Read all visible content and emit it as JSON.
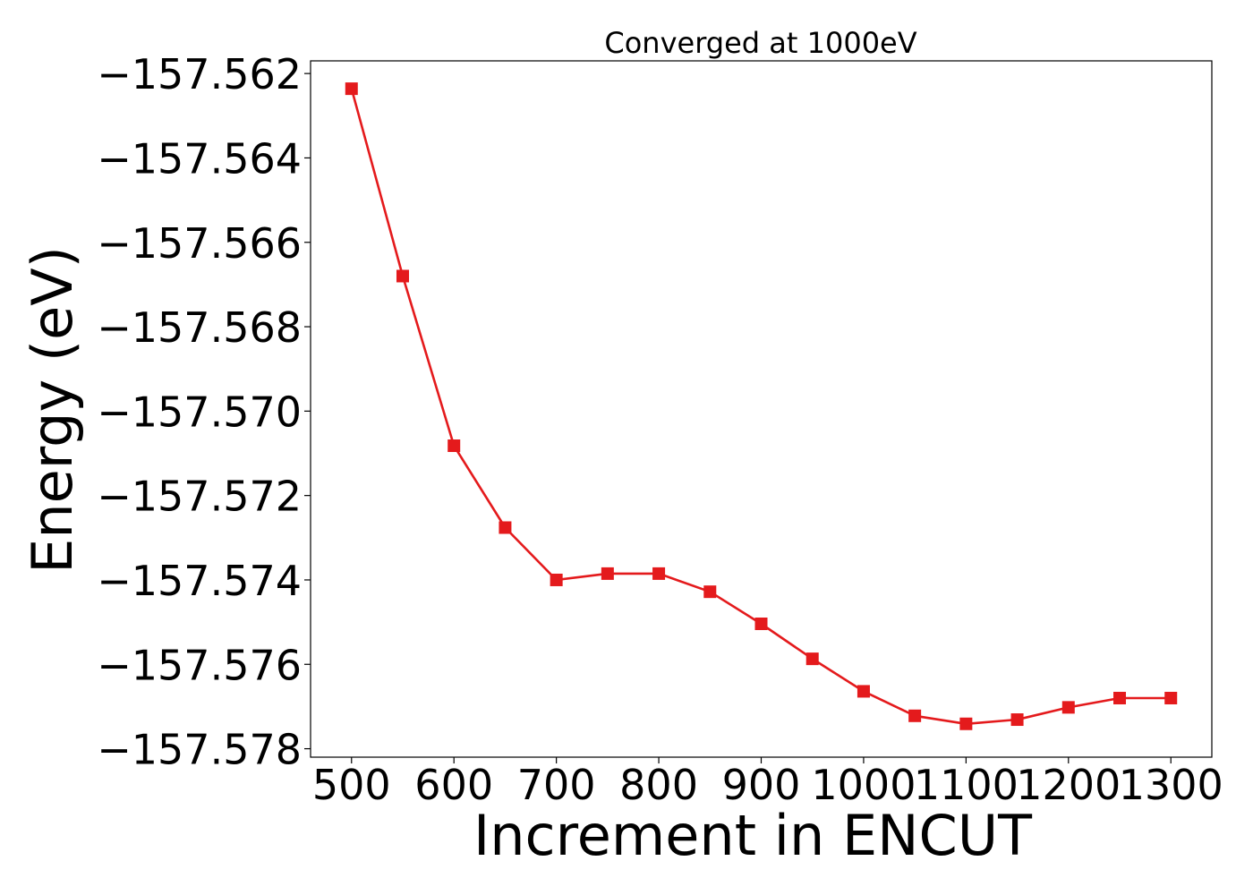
{
  "chart_data": {
    "type": "line",
    "title": "Converged at 1000eV",
    "xlabel": "Increment in ENCUT",
    "ylabel": "Energy (eV)",
    "xlim": [
      460,
      1340
    ],
    "ylim": [
      -157.5782,
      -157.5617
    ],
    "x_ticks": [
      500,
      600,
      700,
      800,
      900,
      1000,
      1100,
      1200,
      1300
    ],
    "x_tick_labels": [
      "500",
      "600",
      "700",
      "800",
      "900",
      "1000",
      "1100",
      "1200",
      "1300"
    ],
    "y_ticks": [
      -157.562,
      -157.564,
      -157.566,
      -157.568,
      -157.57,
      -157.572,
      -157.574,
      -157.576,
      -157.578
    ],
    "y_tick_labels": [
      "−157.562",
      "−157.564",
      "−157.566",
      "−157.568",
      "−157.570",
      "−157.572",
      "−157.574",
      "−157.576",
      "−157.578"
    ],
    "grid": false,
    "marker": "square",
    "color": "#e41a1c",
    "series": [
      {
        "x": [
          500,
          550,
          600,
          650,
          700,
          750,
          800,
          850,
          900,
          950,
          1000,
          1050,
          1100,
          1150,
          1200,
          1250,
          1300
        ],
        "values": [
          -157.56236,
          -157.5668,
          -157.57082,
          -157.57276,
          -157.574,
          -157.57385,
          -157.57385,
          -157.57428,
          -157.57504,
          -157.57587,
          -157.57664,
          -157.57722,
          -157.57741,
          -157.57731,
          -157.57702,
          -157.5768,
          -157.5768
        ]
      }
    ]
  }
}
